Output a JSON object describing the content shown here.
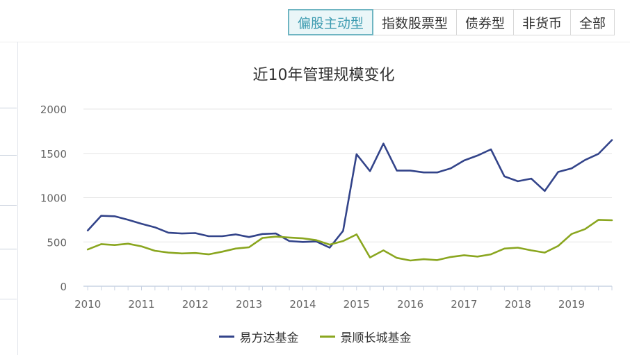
{
  "tabs": [
    {
      "label": "偏股主动型",
      "active": true
    },
    {
      "label": "指数股票型",
      "active": false
    },
    {
      "label": "债券型",
      "active": false
    },
    {
      "label": "非货币",
      "active": false
    },
    {
      "label": "全部",
      "active": false
    }
  ],
  "chart_data": {
    "type": "line",
    "title": "近10年管理规模变化",
    "xlabel": "",
    "ylabel": "",
    "ylim": [
      0,
      2000
    ],
    "yticks": [
      "0",
      "500",
      "1000",
      "1500",
      "2000"
    ],
    "x_range": [
      2009.92,
      2019.75
    ],
    "xticks": [
      "2010",
      "2011",
      "2012",
      "2013",
      "2014",
      "2015",
      "2016",
      "2017",
      "2018",
      "2019"
    ],
    "grid": true,
    "legend_position": "bottom",
    "x": [
      2010.0,
      2010.25,
      2010.5,
      2010.75,
      2011.0,
      2011.25,
      2011.5,
      2011.75,
      2012.0,
      2012.25,
      2012.5,
      2012.75,
      2013.0,
      2013.25,
      2013.5,
      2013.75,
      2014.0,
      2014.25,
      2014.5,
      2014.75,
      2015.0,
      2015.25,
      2015.5,
      2015.75,
      2016.0,
      2016.25,
      2016.5,
      2016.75,
      2017.0,
      2017.25,
      2017.5,
      2017.75,
      2018.0,
      2018.25,
      2018.5,
      2018.75,
      2019.0,
      2019.25,
      2019.5,
      2019.75
    ],
    "series": [
      {
        "name": "易方达基金",
        "color": "#33448a",
        "values": [
          630,
          795,
          790,
          750,
          705,
          665,
          605,
          595,
          600,
          565,
          565,
          585,
          555,
          590,
          595,
          510,
          500,
          505,
          435,
          625,
          1490,
          1300,
          1610,
          1305,
          1305,
          1285,
          1285,
          1330,
          1420,
          1475,
          1545,
          1240,
          1185,
          1215,
          1075,
          1290,
          1330,
          1425,
          1495,
          1650
        ]
      },
      {
        "name": "景顺长城基金",
        "color": "#8aa61f",
        "values": [
          415,
          475,
          465,
          480,
          450,
          400,
          380,
          370,
          375,
          360,
          390,
          425,
          440,
          545,
          560,
          550,
          540,
          520,
          470,
          510,
          585,
          325,
          405,
          320,
          290,
          305,
          295,
          330,
          350,
          335,
          360,
          425,
          435,
          405,
          380,
          455,
          590,
          645,
          750,
          745
        ]
      }
    ]
  }
}
